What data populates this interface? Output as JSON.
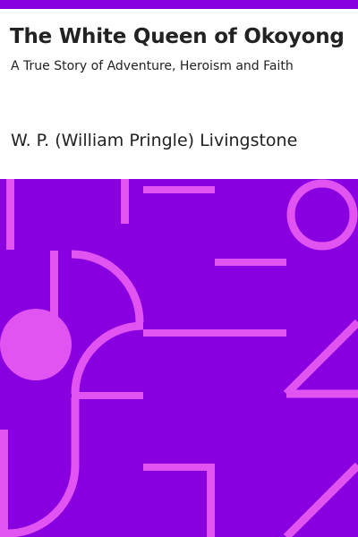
{
  "cover": {
    "title": "The White Queen of Okoyong",
    "subtitle": "A True Story of Adventure, Heroism and Faith",
    "author": "W. P. (William Pringle) Livingstone"
  },
  "colors": {
    "background": "#8800e0",
    "accent": "#e254f2",
    "text": "#222222",
    "page": "#ffffff"
  }
}
